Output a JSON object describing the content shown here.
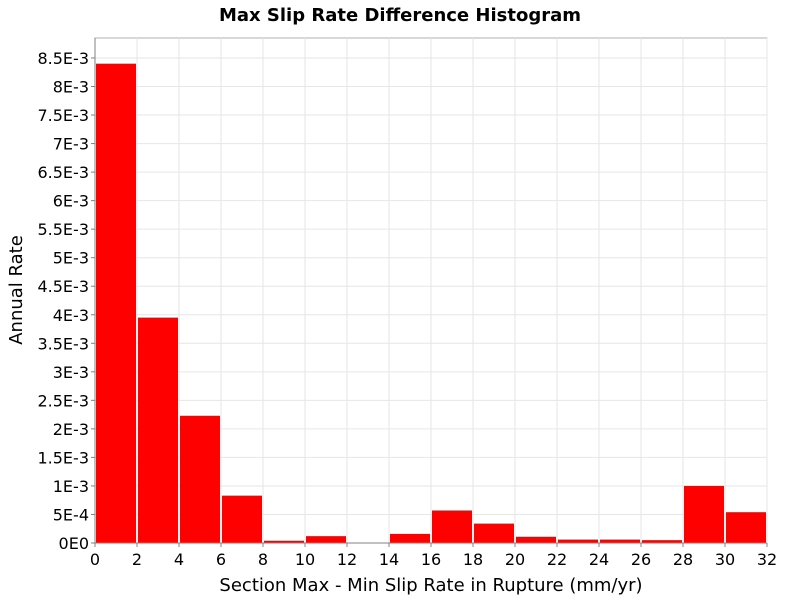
{
  "chart_data": {
    "type": "bar",
    "title": "Max Slip Rate Difference Histogram",
    "xlabel": "Section Max - Min Slip Rate in Rupture (mm/yr)",
    "ylabel": "Annual Rate",
    "xlim": [
      0,
      32
    ],
    "ylim": [
      0,
      0.00885
    ],
    "grid": true,
    "bar_color": "#ff0000",
    "x_ticks": [
      {
        "value": 0,
        "label": "0"
      },
      {
        "value": 2,
        "label": "2"
      },
      {
        "value": 4,
        "label": "4"
      },
      {
        "value": 6,
        "label": "6"
      },
      {
        "value": 8,
        "label": "8"
      },
      {
        "value": 10,
        "label": "10"
      },
      {
        "value": 12,
        "label": "12"
      },
      {
        "value": 14,
        "label": "14"
      },
      {
        "value": 16,
        "label": "16"
      },
      {
        "value": 18,
        "label": "18"
      },
      {
        "value": 20,
        "label": "20"
      },
      {
        "value": 22,
        "label": "22"
      },
      {
        "value": 24,
        "label": "24"
      },
      {
        "value": 26,
        "label": "26"
      },
      {
        "value": 28,
        "label": "28"
      },
      {
        "value": 30,
        "label": "30"
      },
      {
        "value": 32,
        "label": "32"
      }
    ],
    "y_ticks": [
      {
        "value": 0,
        "label": "0E0"
      },
      {
        "value": 0.0005,
        "label": "5E-4"
      },
      {
        "value": 0.001,
        "label": "1E-3"
      },
      {
        "value": 0.0015,
        "label": "1.5E-3"
      },
      {
        "value": 0.002,
        "label": "2E-3"
      },
      {
        "value": 0.0025,
        "label": "2.5E-3"
      },
      {
        "value": 0.003,
        "label": "3E-3"
      },
      {
        "value": 0.0035,
        "label": "3.5E-3"
      },
      {
        "value": 0.004,
        "label": "4E-3"
      },
      {
        "value": 0.0045,
        "label": "4.5E-3"
      },
      {
        "value": 0.005,
        "label": "5E-3"
      },
      {
        "value": 0.0055,
        "label": "5.5E-3"
      },
      {
        "value": 0.006,
        "label": "6E-3"
      },
      {
        "value": 0.0065,
        "label": "6.5E-3"
      },
      {
        "value": 0.007,
        "label": "7E-3"
      },
      {
        "value": 0.0075,
        "label": "7.5E-3"
      },
      {
        "value": 0.008,
        "label": "8E-3"
      },
      {
        "value": 0.0085,
        "label": "8.5E-3"
      }
    ],
    "bins": [
      {
        "x0": 0,
        "x1": 2,
        "value": 0.0084
      },
      {
        "x0": 2,
        "x1": 4,
        "value": 0.00395
      },
      {
        "x0": 4,
        "x1": 6,
        "value": 0.00223
      },
      {
        "x0": 6,
        "x1": 8,
        "value": 0.00083
      },
      {
        "x0": 8,
        "x1": 10,
        "value": 4e-05
      },
      {
        "x0": 10,
        "x1": 12,
        "value": 0.00012
      },
      {
        "x0": 12,
        "x1": 14,
        "value": 0
      },
      {
        "x0": 14,
        "x1": 16,
        "value": 0.00016
      },
      {
        "x0": 16,
        "x1": 18,
        "value": 0.00057
      },
      {
        "x0": 18,
        "x1": 20,
        "value": 0.00034
      },
      {
        "x0": 20,
        "x1": 22,
        "value": 0.00011
      },
      {
        "x0": 22,
        "x1": 24,
        "value": 6e-05
      },
      {
        "x0": 24,
        "x1": 26,
        "value": 6e-05
      },
      {
        "x0": 26,
        "x1": 28,
        "value": 5e-05
      },
      {
        "x0": 28,
        "x1": 30,
        "value": 0.001
      },
      {
        "x0": 30,
        "x1": 32,
        "value": 0.00054
      }
    ]
  }
}
